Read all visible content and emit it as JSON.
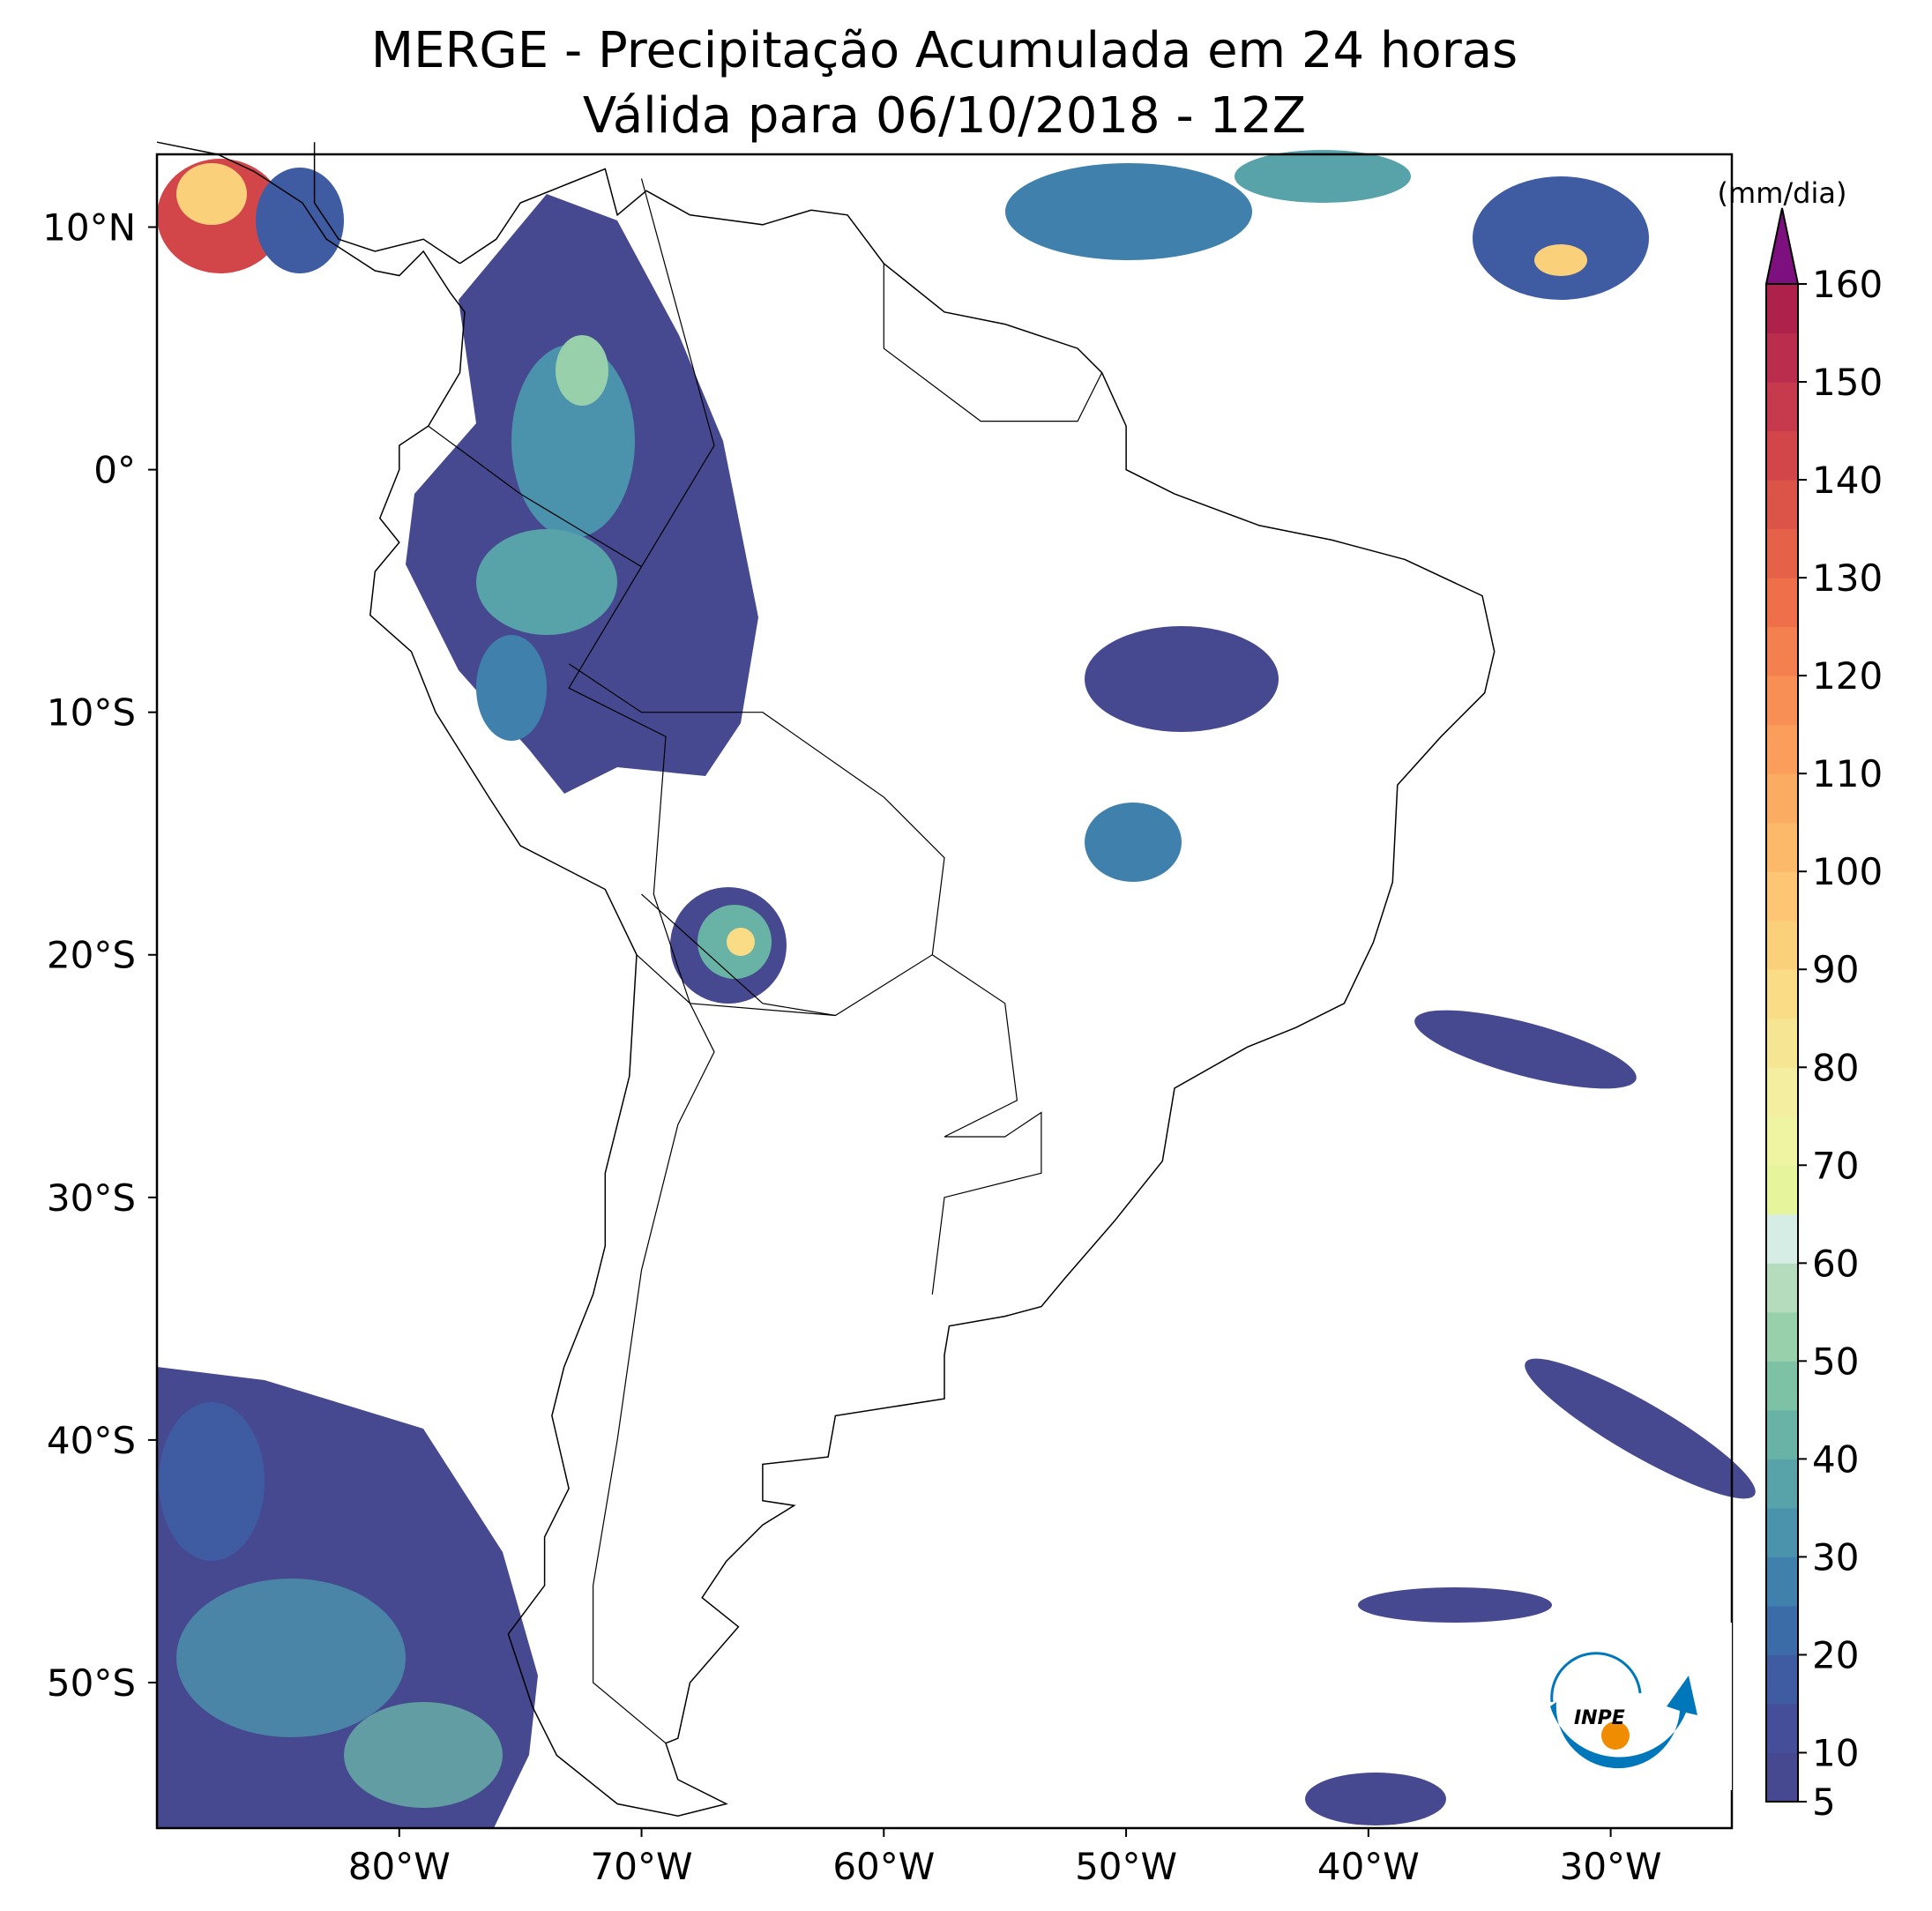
{
  "chart_data": {
    "type": "map",
    "title": "MERGE - Precipitação Acumulada em 24 horas",
    "subtitle": "Válida para 06/10/2018 - 12Z",
    "xlim": [
      -90,
      -25
    ],
    "ylim": [
      -56,
      13
    ],
    "xticks": [
      {
        "value": -80,
        "label": "80°W"
      },
      {
        "value": -70,
        "label": "70°W"
      },
      {
        "value": -60,
        "label": "60°W"
      },
      {
        "value": -50,
        "label": "50°W"
      },
      {
        "value": -40,
        "label": "40°W"
      },
      {
        "value": -30,
        "label": "30°W"
      }
    ],
    "yticks": [
      {
        "value": 10,
        "label": "10°N"
      },
      {
        "value": 0,
        "label": "0°"
      },
      {
        "value": -10,
        "label": "10°S"
      },
      {
        "value": -20,
        "label": "20°S"
      },
      {
        "value": -30,
        "label": "30°S"
      },
      {
        "value": -40,
        "label": "40°S"
      },
      {
        "value": -50,
        "label": "50°S"
      }
    ],
    "colorbar": {
      "label": "(mm/dia)",
      "lim": [
        5,
        160
      ],
      "ticks": [
        5,
        10,
        20,
        30,
        40,
        50,
        60,
        70,
        80,
        90,
        100,
        110,
        120,
        130,
        140,
        150,
        160
      ],
      "bounds": [
        5,
        10,
        15,
        20,
        25,
        30,
        35,
        40,
        45,
        50,
        55,
        60,
        65,
        70,
        75,
        80,
        85,
        90,
        95,
        100,
        105,
        110,
        115,
        120,
        125,
        130,
        135,
        140,
        145,
        150,
        155,
        160
      ],
      "colors": [
        "#464990",
        "#454f99",
        "#3f5ca3",
        "#3b6ca8",
        "#4080ac",
        "#4b93ad",
        "#58a3aa",
        "#68b3a6",
        "#7dc2a5",
        "#98d0ab",
        "#b5dcbc",
        "#d6ede6",
        "#e6f59b",
        "#eef4a2",
        "#f3eea0",
        "#f6e593",
        "#f9dc85",
        "#fbd07b",
        "#fdc574",
        "#fdb96a",
        "#fcab62",
        "#fb9d5b",
        "#f88f55",
        "#f4804f",
        "#ee6f4a",
        "#e56147",
        "#dc5348",
        "#d2464a",
        "#c7394c",
        "#bb2d4c",
        "#ae214a"
      ],
      "extend_color": "#7e0f7e"
    },
    "logo": "INPE"
  }
}
